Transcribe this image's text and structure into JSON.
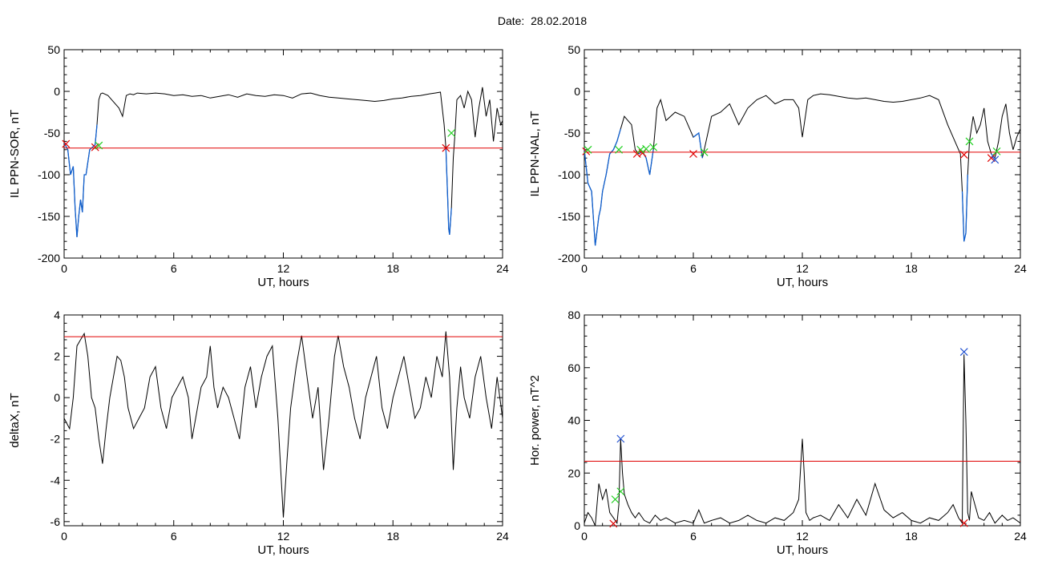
{
  "figure": {
    "title": "Date:  28.02.2018"
  },
  "colors": {
    "line": "#000000",
    "threshold": "#e00000",
    "event": "#1060d0",
    "marker_start": "#e00000",
    "marker_end": "#20d020",
    "marker_peak": "#2050d0"
  },
  "chart_data": [
    {
      "type": "line",
      "xlabel": "UT, hours",
      "ylabel": "IL PPN-SOR, nT",
      "xlim": [
        0,
        24
      ],
      "ylim": [
        -200,
        50
      ],
      "xticks": [
        0,
        6,
        12,
        18,
        24
      ],
      "yticks": [
        -200,
        -150,
        -100,
        -50,
        0,
        50
      ],
      "threshold": -68,
      "x": [
        0,
        0.2,
        0.35,
        0.5,
        0.6,
        0.7,
        0.8,
        0.9,
        1.0,
        1.1,
        1.2,
        1.3,
        1.4,
        1.5,
        1.6,
        1.7,
        1.8,
        1.9,
        2.0,
        2.1,
        2.2,
        2.4,
        2.6,
        2.8,
        3.0,
        3.2,
        3.4,
        3.6,
        3.8,
        4.0,
        4.5,
        5,
        5.5,
        6,
        6.5,
        7,
        7.5,
        8,
        8.5,
        9,
        9.5,
        10,
        10.5,
        11,
        11.5,
        12,
        12.5,
        13,
        13.5,
        14,
        14.5,
        15,
        15.5,
        16,
        16.5,
        17,
        17.5,
        18,
        18.5,
        19,
        19.5,
        20,
        20.3,
        20.6,
        20.8,
        20.9,
        21.0,
        21.05,
        21.1,
        21.2,
        21.3,
        21.4,
        21.5,
        21.7,
        21.9,
        22.1,
        22.3,
        22.5,
        22.7,
        22.9,
        23.1,
        23.3,
        23.5,
        23.7,
        23.9,
        24
      ],
      "y": [
        -62,
        -70,
        -100,
        -90,
        -140,
        -175,
        -150,
        -130,
        -145,
        -100,
        -100,
        -85,
        -70,
        -68,
        -66,
        -64,
        -40,
        -10,
        -3,
        -2,
        -3,
        -5,
        -10,
        -15,
        -20,
        -30,
        -5,
        -3,
        -4,
        -2,
        -3,
        -2,
        -3,
        -5,
        -4,
        -6,
        -5,
        -8,
        -6,
        -4,
        -7,
        -3,
        -5,
        -6,
        -4,
        -5,
        -8,
        -3,
        -2,
        -5,
        -7,
        -8,
        -9,
        -10,
        -11,
        -12,
        -11,
        -9,
        -8,
        -6,
        -5,
        -3,
        -2,
        -1,
        -40,
        -68,
        -130,
        -165,
        -172,
        -140,
        -80,
        -50,
        -10,
        -5,
        -20,
        0,
        -10,
        -55,
        -20,
        5,
        -30,
        -10,
        -60,
        -20,
        -40,
        -35
      ],
      "event_x": [
        [
          0,
          1.8
        ],
        [
          20.9,
          21.25
        ]
      ],
      "markers_start": [
        {
          "x": 0.1,
          "y": -63
        },
        {
          "x": 1.7,
          "y": -67
        },
        {
          "x": 20.9,
          "y": -68
        }
      ],
      "markers_end": [
        {
          "x": 1.9,
          "y": -65
        },
        {
          "x": 21.2,
          "y": -50
        }
      ]
    },
    {
      "type": "line",
      "xlabel": "UT, hours",
      "ylabel": "IL PPN-NAL, nT",
      "xlim": [
        0,
        24
      ],
      "ylim": [
        -200,
        50
      ],
      "xticks": [
        0,
        6,
        12,
        18,
        24
      ],
      "yticks": [
        -200,
        -150,
        -100,
        -50,
        0,
        50
      ],
      "threshold": -73,
      "x": [
        0,
        0.2,
        0.4,
        0.6,
        0.8,
        0.9,
        1.0,
        1.2,
        1.4,
        1.6,
        1.8,
        2.0,
        2.2,
        2.4,
        2.6,
        2.8,
        3.0,
        3.2,
        3.4,
        3.6,
        3.8,
        4.0,
        4.2,
        4.5,
        5,
        5.5,
        6,
        6.3,
        6.5,
        6.7,
        7,
        7.5,
        8,
        8.5,
        9,
        9.5,
        10,
        10.5,
        11,
        11.5,
        11.8,
        12,
        12.3,
        12.6,
        13,
        13.5,
        14,
        14.5,
        15,
        15.5,
        16,
        16.5,
        17,
        17.5,
        18,
        18.5,
        19,
        19.5,
        20,
        20.4,
        20.7,
        20.8,
        20.9,
        21.0,
        21.1,
        21.2,
        21.4,
        21.6,
        21.8,
        22.0,
        22.2,
        22.4,
        22.6,
        22.8,
        23.0,
        23.2,
        23.4,
        23.6,
        23.8,
        24
      ],
      "y": [
        -70,
        -110,
        -120,
        -185,
        -150,
        -140,
        -120,
        -100,
        -75,
        -70,
        -60,
        -45,
        -30,
        -35,
        -40,
        -70,
        -75,
        -72,
        -80,
        -100,
        -70,
        -20,
        -10,
        -35,
        -25,
        -30,
        -55,
        -50,
        -80,
        -60,
        -30,
        -25,
        -15,
        -40,
        -20,
        -10,
        -5,
        -15,
        -10,
        -10,
        -20,
        -55,
        -10,
        -5,
        -3,
        -4,
        -6,
        -8,
        -9,
        -8,
        -10,
        -12,
        -13,
        -12,
        -10,
        -8,
        -5,
        -10,
        -40,
        -60,
        -75,
        -120,
        -180,
        -170,
        -100,
        -60,
        -30,
        -50,
        -40,
        -20,
        -60,
        -75,
        -80,
        -60,
        -30,
        -15,
        -50,
        -70,
        -55,
        -45
      ],
      "event_x": [
        [
          0,
          2.0
        ],
        [
          2.9,
          3.8
        ],
        [
          6.0,
          6.6
        ],
        [
          20.8,
          21.15
        ],
        [
          22.3,
          22.7
        ]
      ],
      "markers_start": [
        {
          "x": 0.1,
          "y": -72
        },
        {
          "x": 2.9,
          "y": -75
        },
        {
          "x": 3.2,
          "y": -74
        },
        {
          "x": 6.0,
          "y": -75
        },
        {
          "x": 20.9,
          "y": -76
        },
        {
          "x": 22.4,
          "y": -80
        }
      ],
      "markers_end": [
        {
          "x": 0.2,
          "y": -70
        },
        {
          "x": 1.9,
          "y": -70
        },
        {
          "x": 3.1,
          "y": -70
        },
        {
          "x": 3.4,
          "y": -69
        },
        {
          "x": 3.8,
          "y": -67
        },
        {
          "x": 6.6,
          "y": -73
        },
        {
          "x": 21.2,
          "y": -60
        },
        {
          "x": 22.7,
          "y": -72
        }
      ],
      "markers_peak": [
        {
          "x": 22.6,
          "y": -82
        }
      ]
    },
    {
      "type": "line",
      "xlabel": "UT, hours",
      "ylabel": "deltaX, nT",
      "xlim": [
        0,
        24
      ],
      "ylim": [
        -6.2,
        4
      ],
      "xticks": [
        0,
        6,
        12,
        18,
        24
      ],
      "yticks": [
        -6,
        -4,
        -2,
        0,
        2,
        4
      ],
      "threshold": 2.95,
      "x": [
        0,
        0.3,
        0.5,
        0.7,
        0.9,
        1.1,
        1.3,
        1.5,
        1.7,
        1.9,
        2.1,
        2.3,
        2.5,
        2.7,
        2.9,
        3.1,
        3.3,
        3.5,
        3.8,
        4.1,
        4.4,
        4.7,
        5.0,
        5.3,
        5.6,
        5.9,
        6.2,
        6.5,
        6.8,
        7.0,
        7.2,
        7.5,
        7.8,
        8.0,
        8.2,
        8.4,
        8.7,
        9.0,
        9.3,
        9.6,
        9.9,
        10.2,
        10.5,
        10.8,
        11.1,
        11.4,
        11.7,
        12.0,
        12.2,
        12.4,
        12.7,
        13.0,
        13.3,
        13.6,
        13.9,
        14.2,
        14.5,
        14.8,
        15.0,
        15.3,
        15.6,
        15.9,
        16.2,
        16.5,
        16.8,
        17.1,
        17.4,
        17.7,
        18.0,
        18.3,
        18.6,
        18.9,
        19.2,
        19.5,
        19.8,
        20.1,
        20.4,
        20.7,
        20.9,
        21.1,
        21.3,
        21.5,
        21.7,
        21.9,
        22.2,
        22.5,
        22.8,
        23.1,
        23.4,
        23.7,
        24
      ],
      "y": [
        -1,
        -1.5,
        0,
        2.5,
        2.8,
        3.1,
        2,
        0,
        -0.5,
        -2,
        -3.2,
        -1.5,
        0,
        1,
        2,
        1.8,
        1,
        -0.5,
        -1.5,
        -1,
        -0.5,
        1,
        1.5,
        -0.5,
        -1.5,
        0,
        0.5,
        1,
        0,
        -2,
        -1,
        0.5,
        1,
        2.5,
        0.5,
        -0.5,
        0.5,
        0,
        -1,
        -2,
        0.5,
        1.5,
        -0.5,
        1,
        2,
        2.5,
        -1,
        -5.8,
        -3,
        -0.5,
        1.5,
        3,
        1,
        -1,
        0.5,
        -3.5,
        -1,
        2,
        3,
        1.5,
        0.5,
        -1,
        -2,
        0,
        1,
        2,
        -0.5,
        -1.5,
        0,
        1,
        2,
        0.5,
        -1,
        -0.5,
        1,
        0,
        2,
        1,
        3.2,
        1,
        -3.5,
        -0.5,
        1.5,
        0,
        -1,
        1,
        2,
        0,
        -1.5,
        1,
        -1
      ]
    },
    {
      "type": "line",
      "xlabel": "UT, hours",
      "ylabel": "Hor. power, nT^2",
      "xlim": [
        0,
        24
      ],
      "ylim": [
        0,
        80
      ],
      "xticks": [
        0,
        6,
        12,
        18,
        24
      ],
      "yticks": [
        0,
        20,
        40,
        60,
        80
      ],
      "threshold": 24.5,
      "x": [
        0,
        0.2,
        0.4,
        0.6,
        0.8,
        1.0,
        1.2,
        1.4,
        1.6,
        1.8,
        1.9,
        2.0,
        2.1,
        2.2,
        2.4,
        2.6,
        2.8,
        3.0,
        3.3,
        3.6,
        3.9,
        4.2,
        4.5,
        5.0,
        5.5,
        6.0,
        6.3,
        6.6,
        7.0,
        7.5,
        8.0,
        8.5,
        9.0,
        9.5,
        10.0,
        10.5,
        11.0,
        11.5,
        11.8,
        12.0,
        12.1,
        12.2,
        12.4,
        12.6,
        13.0,
        13.5,
        14.0,
        14.5,
        15.0,
        15.5,
        16.0,
        16.5,
        17.0,
        17.5,
        18.0,
        18.5,
        19.0,
        19.5,
        20.0,
        20.3,
        20.6,
        20.8,
        20.9,
        21.0,
        21.1,
        21.2,
        21.3,
        21.5,
        21.7,
        22.0,
        22.3,
        22.6,
        23.0,
        23.3,
        23.6,
        24
      ],
      "y": [
        1,
        5,
        3,
        0,
        16,
        10,
        14,
        5,
        3,
        1,
        8,
        33,
        20,
        12,
        8,
        5,
        3,
        5,
        2,
        1,
        4,
        2,
        3,
        1,
        2,
        1,
        6,
        1,
        2,
        3,
        1,
        2,
        4,
        2,
        1,
        3,
        2,
        5,
        10,
        33,
        20,
        5,
        2,
        3,
        4,
        2,
        8,
        3,
        10,
        4,
        16,
        6,
        3,
        5,
        2,
        1,
        3,
        2,
        5,
        8,
        3,
        1,
        65,
        40,
        5,
        2,
        13,
        8,
        3,
        2,
        5,
        1,
        4,
        2,
        3,
        1
      ],
      "markers_start": [
        {
          "x": 1.6,
          "y": 0.8
        },
        {
          "x": 20.9,
          "y": 1
        }
      ],
      "markers_end": [
        {
          "x": 1.7,
          "y": 10
        },
        {
          "x": 2.0,
          "y": 13
        }
      ],
      "markers_peak": [
        {
          "x": 2.0,
          "y": 33
        },
        {
          "x": 20.9,
          "y": 66
        }
      ]
    }
  ]
}
